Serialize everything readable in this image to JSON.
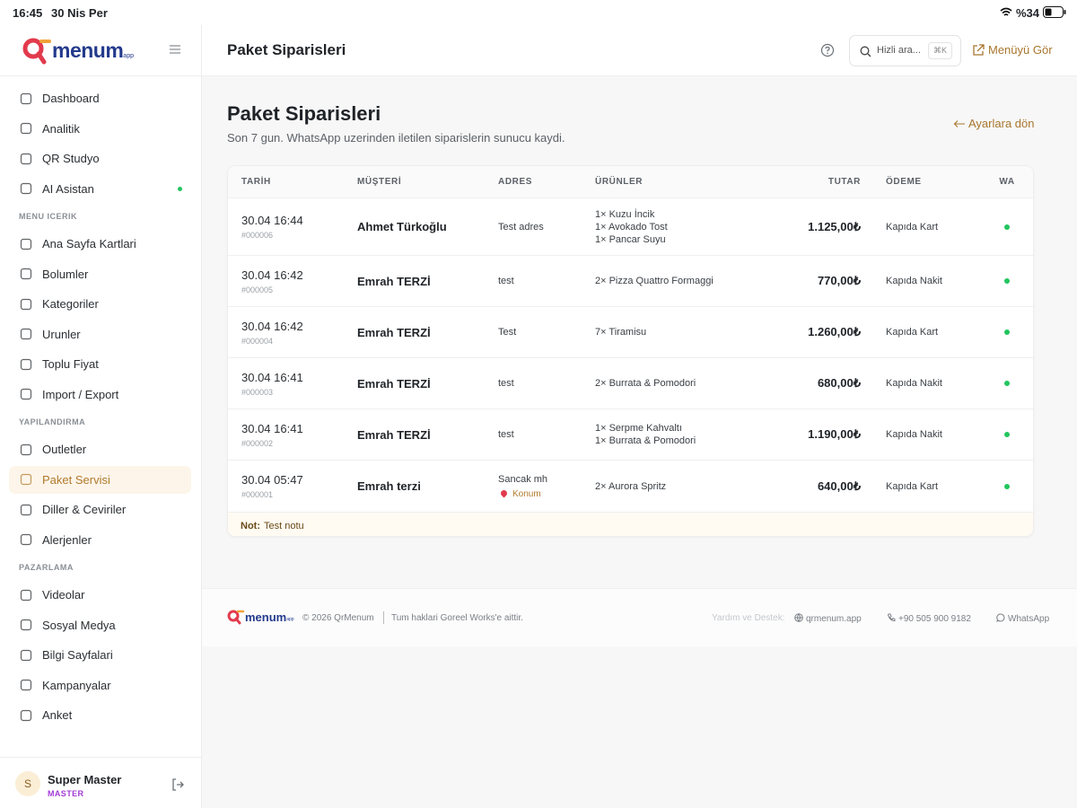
{
  "status_bar": {
    "time": "16:45",
    "date": "30 Nis Per",
    "battery": "%34"
  },
  "logo": {
    "text": "menum",
    "suffix": "app"
  },
  "nav": [
    {
      "items": [
        "Dashboard",
        "Analitik",
        "QR Studyo",
        "AI Asistan"
      ]
    },
    {
      "label": "MENU ICERIK",
      "items": [
        "Ana Sayfa Kartlari",
        "Bolumler",
        "Kategoriler",
        "Urunler",
        "Toplu Fiyat",
        "Import / Export"
      ]
    },
    {
      "label": "YAPILANDIRMA",
      "items": [
        "Outletler",
        "Paket Servisi",
        "Diller & Ceviriler",
        "Alerjenler"
      ]
    },
    {
      "label": "PAZARLAMA",
      "items": [
        "Videolar",
        "Sosyal Medya",
        "Bilgi Sayfalari",
        "Kampanyalar",
        "Anket"
      ]
    }
  ],
  "active_item": "Paket Servisi",
  "user": {
    "initial": "S",
    "name": "Super Master",
    "role": "MASTER"
  },
  "topbar": {
    "title": "Paket Siparisleri",
    "search": "Hizli ara...",
    "shortcut": "⌘K",
    "link": "Menüyü Gör"
  },
  "page": {
    "heading": "Paket Siparisleri",
    "subtitle": "Son 7 gun. WhatsApp uzerinden iletilen siparislerin sunucu kaydi.",
    "back": "Ayarlara dön"
  },
  "table": {
    "columns": [
      "TARİH",
      "MÜŞTERİ",
      "ADRES",
      "ÜRÜNLER",
      "TUTAR",
      "ÖDEME",
      "WA"
    ],
    "rows": [
      {
        "date": "30.04 16:44",
        "id": "#000006",
        "customer": "Ahmet Türkoğlu",
        "address": "Test adres",
        "items": [
          "1× Kuzu İncik",
          "1× Avokado Tost",
          "1× Pancar Suyu"
        ],
        "total": "1.125,00₺",
        "payment": "Kapıda Kart"
      },
      {
        "date": "30.04 16:42",
        "id": "#000005",
        "customer": "Emrah TERZİ",
        "address": "test",
        "items": [
          "2× Pizza Quattro Formaggi"
        ],
        "total": "770,00₺",
        "payment": "Kapıda Nakit"
      },
      {
        "date": "30.04 16:42",
        "id": "#000004",
        "customer": "Emrah TERZİ",
        "address": "Test",
        "items": [
          "7× Tiramisu"
        ],
        "total": "1.260,00₺",
        "payment": "Kapıda Kart"
      },
      {
        "date": "30.04 16:41",
        "id": "#000003",
        "customer": "Emrah TERZİ",
        "address": "test",
        "items": [
          "2× Burrata & Pomodori"
        ],
        "total": "680,00₺",
        "payment": "Kapıda Nakit"
      },
      {
        "date": "30.04 16:41",
        "id": "#000002",
        "customer": "Emrah TERZİ",
        "address": "test",
        "items": [
          "1× Serpme Kahvaltı",
          "1× Burrata & Pomodori"
        ],
        "total": "1.190,00₺",
        "payment": "Kapıda Nakit"
      },
      {
        "date": "30.04 05:47",
        "id": "#000001",
        "customer": "Emrah terzi",
        "address": "Sancak mh",
        "location": "Konum",
        "items": [
          "2× Aurora Spritz"
        ],
        "total": "640,00₺",
        "payment": "Kapıda Kart",
        "note_label": "Not:",
        "note": "Test notu"
      }
    ]
  },
  "footer": {
    "copyright": "© 2026 QrMenum",
    "rights": "Tum haklari Goreel Works'e aittir.",
    "support": "Yardım ve Destek:",
    "site": "qrmenum.app",
    "phone": "+90 505 900 9182",
    "whatsapp": "WhatsApp"
  }
}
